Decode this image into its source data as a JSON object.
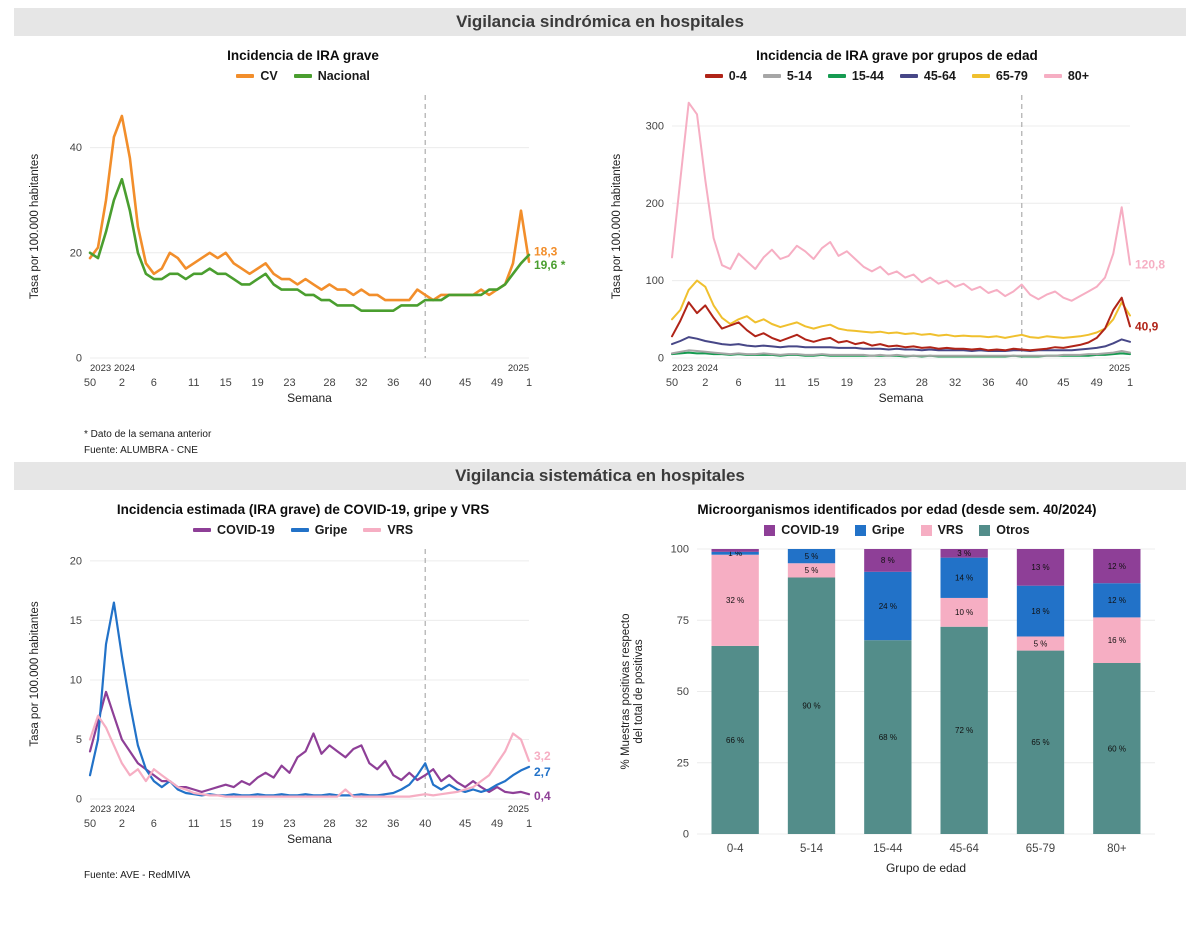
{
  "sections": [
    {
      "title": "Vigilancia sindrómica en hospitales"
    },
    {
      "title": "Vigilancia sistemática en hospitales"
    }
  ],
  "chart_data": [
    {
      "type": "line",
      "title": "Incidencia de IRA grave",
      "ylabel": "Tasa por 100.000 habitantes",
      "xlabel": "Semana",
      "ylim": [
        0,
        50
      ],
      "yticks": [
        0,
        20,
        40
      ],
      "x_tick_indices": [
        0,
        4,
        8,
        13,
        17,
        21,
        25,
        30,
        34,
        38,
        42,
        47,
        51,
        55
      ],
      "x_tick_labels": [
        "50",
        "2",
        "6",
        "11",
        "15",
        "19",
        "23",
        "28",
        "32",
        "36",
        "40",
        "45",
        "49",
        "1"
      ],
      "year_labels": [
        {
          "text": "2023",
          "i": 0
        },
        {
          "text": "2024",
          "i": 3
        },
        {
          "text": "2025",
          "i": 55,
          "anchor": "end"
        }
      ],
      "dashed_line_index": 42,
      "series": [
        {
          "name": "CV",
          "color": "#f28e2b",
          "end_label": "18,3",
          "end_dy": -10,
          "values": [
            19,
            21,
            30,
            42,
            46,
            38,
            25,
            18,
            16,
            17,
            20,
            19,
            17,
            18,
            19,
            20,
            19,
            20,
            18,
            17,
            16,
            17,
            18,
            16,
            15,
            15,
            14,
            15,
            14,
            13,
            14,
            13,
            13,
            12,
            13,
            12,
            12,
            11,
            11,
            11,
            11,
            13,
            12,
            11,
            12,
            12,
            12,
            12,
            12,
            13,
            12,
            13,
            14,
            18,
            28,
            18.3
          ]
        },
        {
          "name": "Nacional",
          "color": "#4a9e2f",
          "end_label": "19,6 *",
          "end_dy": 10,
          "values": [
            20,
            19,
            24,
            30,
            34,
            28,
            20,
            16,
            15,
            15,
            16,
            16,
            15,
            16,
            16,
            17,
            16,
            16,
            15,
            14,
            14,
            15,
            16,
            14,
            13,
            13,
            13,
            12,
            12,
            11,
            11,
            10,
            10,
            10,
            9,
            9,
            9,
            9,
            9,
            10,
            10,
            10,
            11,
            11,
            11,
            12,
            12,
            12,
            12,
            12,
            13,
            13,
            14,
            16,
            18,
            19.6
          ]
        }
      ],
      "footnotes": [
        "* Dato de la semana anterior",
        "Fuente: ALUMBRA - CNE"
      ]
    },
    {
      "type": "line",
      "title": "Incidencia de IRA grave por grupos de edad",
      "ylabel": "Tasa por 100.000 habitantes",
      "xlabel": "Semana",
      "ylim": [
        0,
        340
      ],
      "yticks": [
        0,
        100,
        200,
        300
      ],
      "x_tick_indices": [
        0,
        4,
        8,
        13,
        17,
        21,
        25,
        30,
        34,
        38,
        42,
        47,
        51,
        55
      ],
      "x_tick_labels": [
        "50",
        "2",
        "6",
        "11",
        "15",
        "19",
        "23",
        "28",
        "32",
        "36",
        "40",
        "45",
        "49",
        "1"
      ],
      "year_labels": [
        {
          "text": "2023",
          "i": 0
        },
        {
          "text": "2024",
          "i": 3
        },
        {
          "text": "2025",
          "i": 55,
          "anchor": "end"
        }
      ],
      "dashed_line_index": 42,
      "draw_order": [
        2,
        1,
        3,
        4,
        5,
        0
      ],
      "series": [
        {
          "name": "0-4",
          "color": "#b02418",
          "end_label": "40,9",
          "values": [
            28,
            48,
            72,
            58,
            68,
            52,
            38,
            42,
            46,
            36,
            28,
            32,
            26,
            22,
            26,
            30,
            24,
            21,
            24,
            26,
            20,
            22,
            18,
            20,
            16,
            18,
            15,
            16,
            14,
            15,
            13,
            14,
            12,
            13,
            12,
            12,
            11,
            12,
            10,
            11,
            10,
            12,
            11,
            10,
            11,
            12,
            14,
            13,
            15,
            17,
            20,
            26,
            38,
            62,
            78,
            40.9
          ]
        },
        {
          "name": "5-14",
          "color": "#a6a6a6",
          "values": [
            6,
            8,
            10,
            9,
            8,
            7,
            6,
            5,
            6,
            5,
            5,
            6,
            5,
            4,
            5,
            5,
            4,
            4,
            5,
            4,
            4,
            4,
            4,
            4,
            3,
            4,
            3,
            4,
            3,
            3,
            3,
            3,
            3,
            3,
            3,
            3,
            3,
            3,
            3,
            3,
            3,
            3,
            3,
            3,
            3,
            3,
            3,
            4,
            4,
            4,
            5,
            5,
            6,
            7,
            9,
            7
          ]
        },
        {
          "name": "15-44",
          "color": "#169b51",
          "values": [
            5,
            6,
            7,
            6,
            6,
            5,
            5,
            4,
            5,
            4,
            4,
            4,
            4,
            3,
            4,
            4,
            3,
            3,
            4,
            3,
            3,
            3,
            3,
            3,
            3,
            3,
            3,
            3,
            2,
            3,
            2,
            3,
            2,
            2,
            2,
            2,
            2,
            2,
            2,
            2,
            2,
            3,
            2,
            2,
            2,
            3,
            3,
            3,
            3,
            3,
            3,
            4,
            4,
            5,
            6,
            5
          ]
        },
        {
          "name": "45-64",
          "color": "#474787",
          "values": [
            18,
            22,
            27,
            25,
            22,
            20,
            18,
            17,
            18,
            16,
            15,
            16,
            15,
            14,
            15,
            15,
            14,
            14,
            14,
            14,
            13,
            13,
            13,
            12,
            12,
            12,
            11,
            12,
            11,
            11,
            10,
            11,
            10,
            10,
            10,
            10,
            9,
            10,
            9,
            9,
            9,
            10,
            10,
            9,
            10,
            10,
            10,
            10,
            10,
            11,
            12,
            13,
            15,
            19,
            24,
            21
          ]
        },
        {
          "name": "65-79",
          "color": "#f0c02e",
          "values": [
            50,
            62,
            88,
            100,
            92,
            68,
            52,
            44,
            50,
            54,
            46,
            50,
            44,
            40,
            43,
            46,
            41,
            38,
            41,
            43,
            38,
            36,
            35,
            34,
            33,
            34,
            32,
            33,
            31,
            32,
            30,
            31,
            29,
            30,
            28,
            29,
            28,
            28,
            27,
            28,
            26,
            28,
            30,
            27,
            26,
            28,
            27,
            26,
            27,
            28,
            30,
            33,
            38,
            50,
            72,
            55
          ]
        },
        {
          "name": "80+",
          "color": "#f6aec3",
          "end_label": "120,8",
          "values": [
            130,
            230,
            330,
            315,
            230,
            155,
            120,
            115,
            135,
            125,
            115,
            130,
            140,
            128,
            132,
            145,
            138,
            128,
            142,
            150,
            132,
            138,
            128,
            118,
            112,
            118,
            108,
            112,
            104,
            108,
            98,
            104,
            96,
            100,
            92,
            96,
            88,
            92,
            84,
            88,
            80,
            86,
            95,
            82,
            76,
            82,
            86,
            78,
            74,
            80,
            86,
            92,
            104,
            135,
            195,
            120.8
          ]
        }
      ],
      "footnotes": []
    },
    {
      "type": "line",
      "title": "Incidencia estimada (IRA grave) de COVID-19, gripe y VRS",
      "ylabel": "Tasa por 100.000 habitantes",
      "xlabel": "Semana",
      "ylim": [
        0,
        21
      ],
      "yticks": [
        0,
        5,
        10,
        15,
        20
      ],
      "x_tick_indices": [
        0,
        4,
        8,
        13,
        17,
        21,
        25,
        30,
        34,
        38,
        42,
        47,
        51,
        55
      ],
      "x_tick_labels": [
        "50",
        "2",
        "6",
        "11",
        "15",
        "19",
        "23",
        "28",
        "32",
        "36",
        "40",
        "45",
        "49",
        "1"
      ],
      "year_labels": [
        {
          "text": "2023",
          "i": 0
        },
        {
          "text": "2024",
          "i": 3
        },
        {
          "text": "2025",
          "i": 55,
          "anchor": "end"
        }
      ],
      "dashed_line_index": 42,
      "series": [
        {
          "name": "COVID-19",
          "color": "#8e3f97",
          "end_label": "0,4",
          "end_dy": 2,
          "values": [
            4,
            6.5,
            9,
            7,
            5,
            4,
            3,
            2.5,
            2,
            1.5,
            1.5,
            1,
            1,
            0.8,
            0.6,
            0.8,
            1,
            1.2,
            1,
            1.5,
            1.2,
            1.8,
            2.2,
            1.8,
            2.8,
            2.2,
            3.5,
            4,
            5.5,
            3.8,
            4.5,
            4,
            3.5,
            4.2,
            4.5,
            3,
            2.5,
            3.2,
            2,
            1.6,
            2.2,
            1.6,
            2,
            2.5,
            1.5,
            2,
            1.4,
            1,
            1.5,
            1,
            0.6,
            1,
            0.6,
            0.5,
            0.6,
            0.4
          ]
        },
        {
          "name": "Gripe",
          "color": "#2272c8",
          "end_label": "2,7",
          "end_dy": 5,
          "values": [
            2,
            5,
            13,
            16.5,
            12,
            8,
            4.5,
            2.5,
            1.5,
            1,
            1.5,
            0.8,
            0.5,
            0.4,
            0.3,
            0.4,
            0.3,
            0.3,
            0.4,
            0.3,
            0.3,
            0.4,
            0.3,
            0.3,
            0.4,
            0.3,
            0.3,
            0.4,
            0.3,
            0.3,
            0.4,
            0.3,
            0.3,
            0.3,
            0.4,
            0.3,
            0.3,
            0.4,
            0.5,
            0.8,
            1.2,
            2,
            3,
            1.2,
            0.8,
            1.2,
            0.8,
            0.6,
            0.8,
            0.6,
            0.8,
            1.2,
            1.5,
            2,
            2.4,
            2.7
          ]
        },
        {
          "name": "VRS",
          "color": "#f6aec3",
          "end_label": "3,2",
          "end_dy": -5,
          "values": [
            5,
            7,
            6,
            4.5,
            3,
            2,
            2.5,
            1.5,
            2.5,
            2,
            1.5,
            1,
            0.8,
            0.5,
            0.4,
            0.3,
            0.3,
            0.2,
            0.2,
            0.2,
            0.2,
            0.2,
            0.2,
            0.2,
            0.2,
            0.2,
            0.2,
            0.2,
            0.2,
            0.2,
            0.2,
            0.2,
            0.8,
            0.2,
            0.2,
            0.2,
            0.2,
            0.2,
            0.2,
            0.2,
            0.2,
            0.3,
            0.4,
            0.3,
            0.4,
            0.5,
            0.6,
            0.8,
            1,
            1.5,
            2,
            3,
            4,
            5.5,
            5,
            3.2
          ]
        }
      ],
      "footnotes": [
        "Fuente: AVE - RedMIVA"
      ]
    },
    {
      "type": "stacked_bar",
      "title": "Microorganismos identificados por edad (desde sem. 40/2024)",
      "ylabel": "% Muestras positivas respecto\ndel total de positivas",
      "xlabel": "Grupo de edad",
      "ylim": [
        0,
        100
      ],
      "yticks": [
        0,
        25,
        50,
        75,
        100
      ],
      "categories": [
        "0-4",
        "5-14",
        "15-44",
        "45-64",
        "65-79",
        "80+"
      ],
      "legend": [
        {
          "label": "COVID-19",
          "color": "#8e3f97"
        },
        {
          "label": "Gripe",
          "color": "#2272c8"
        },
        {
          "label": "VRS",
          "color": "#f6aec3"
        },
        {
          "label": "Otros",
          "color": "#538d8a"
        }
      ],
      "series": [
        {
          "name": "Otros",
          "color": "#538d8a",
          "values": [
            66,
            90,
            68,
            72,
            65,
            60
          ],
          "labels": [
            "66 %",
            "90 %",
            "68 %",
            "72 %",
            "65 %",
            "60 %"
          ]
        },
        {
          "name": "VRS",
          "color": "#f6aec3",
          "values": [
            32,
            5,
            0,
            10,
            5,
            16
          ],
          "labels": [
            "32 %",
            "5 %",
            "",
            "10 %",
            "5 %",
            "16 %"
          ]
        },
        {
          "name": "Gripe",
          "color": "#2272c8",
          "values": [
            1,
            5,
            24,
            14,
            18,
            12
          ],
          "labels": [
            "1 %",
            "5 %",
            "24 %",
            "14 %",
            "18 %",
            "12 %"
          ]
        },
        {
          "name": "COVID-19",
          "color": "#8e3f97",
          "values": [
            1,
            0,
            8,
            3,
            13,
            12
          ],
          "labels": [
            "",
            "",
            "8 %",
            "3 %",
            "13 %",
            "12 %"
          ]
        }
      ],
      "footnotes": []
    }
  ]
}
